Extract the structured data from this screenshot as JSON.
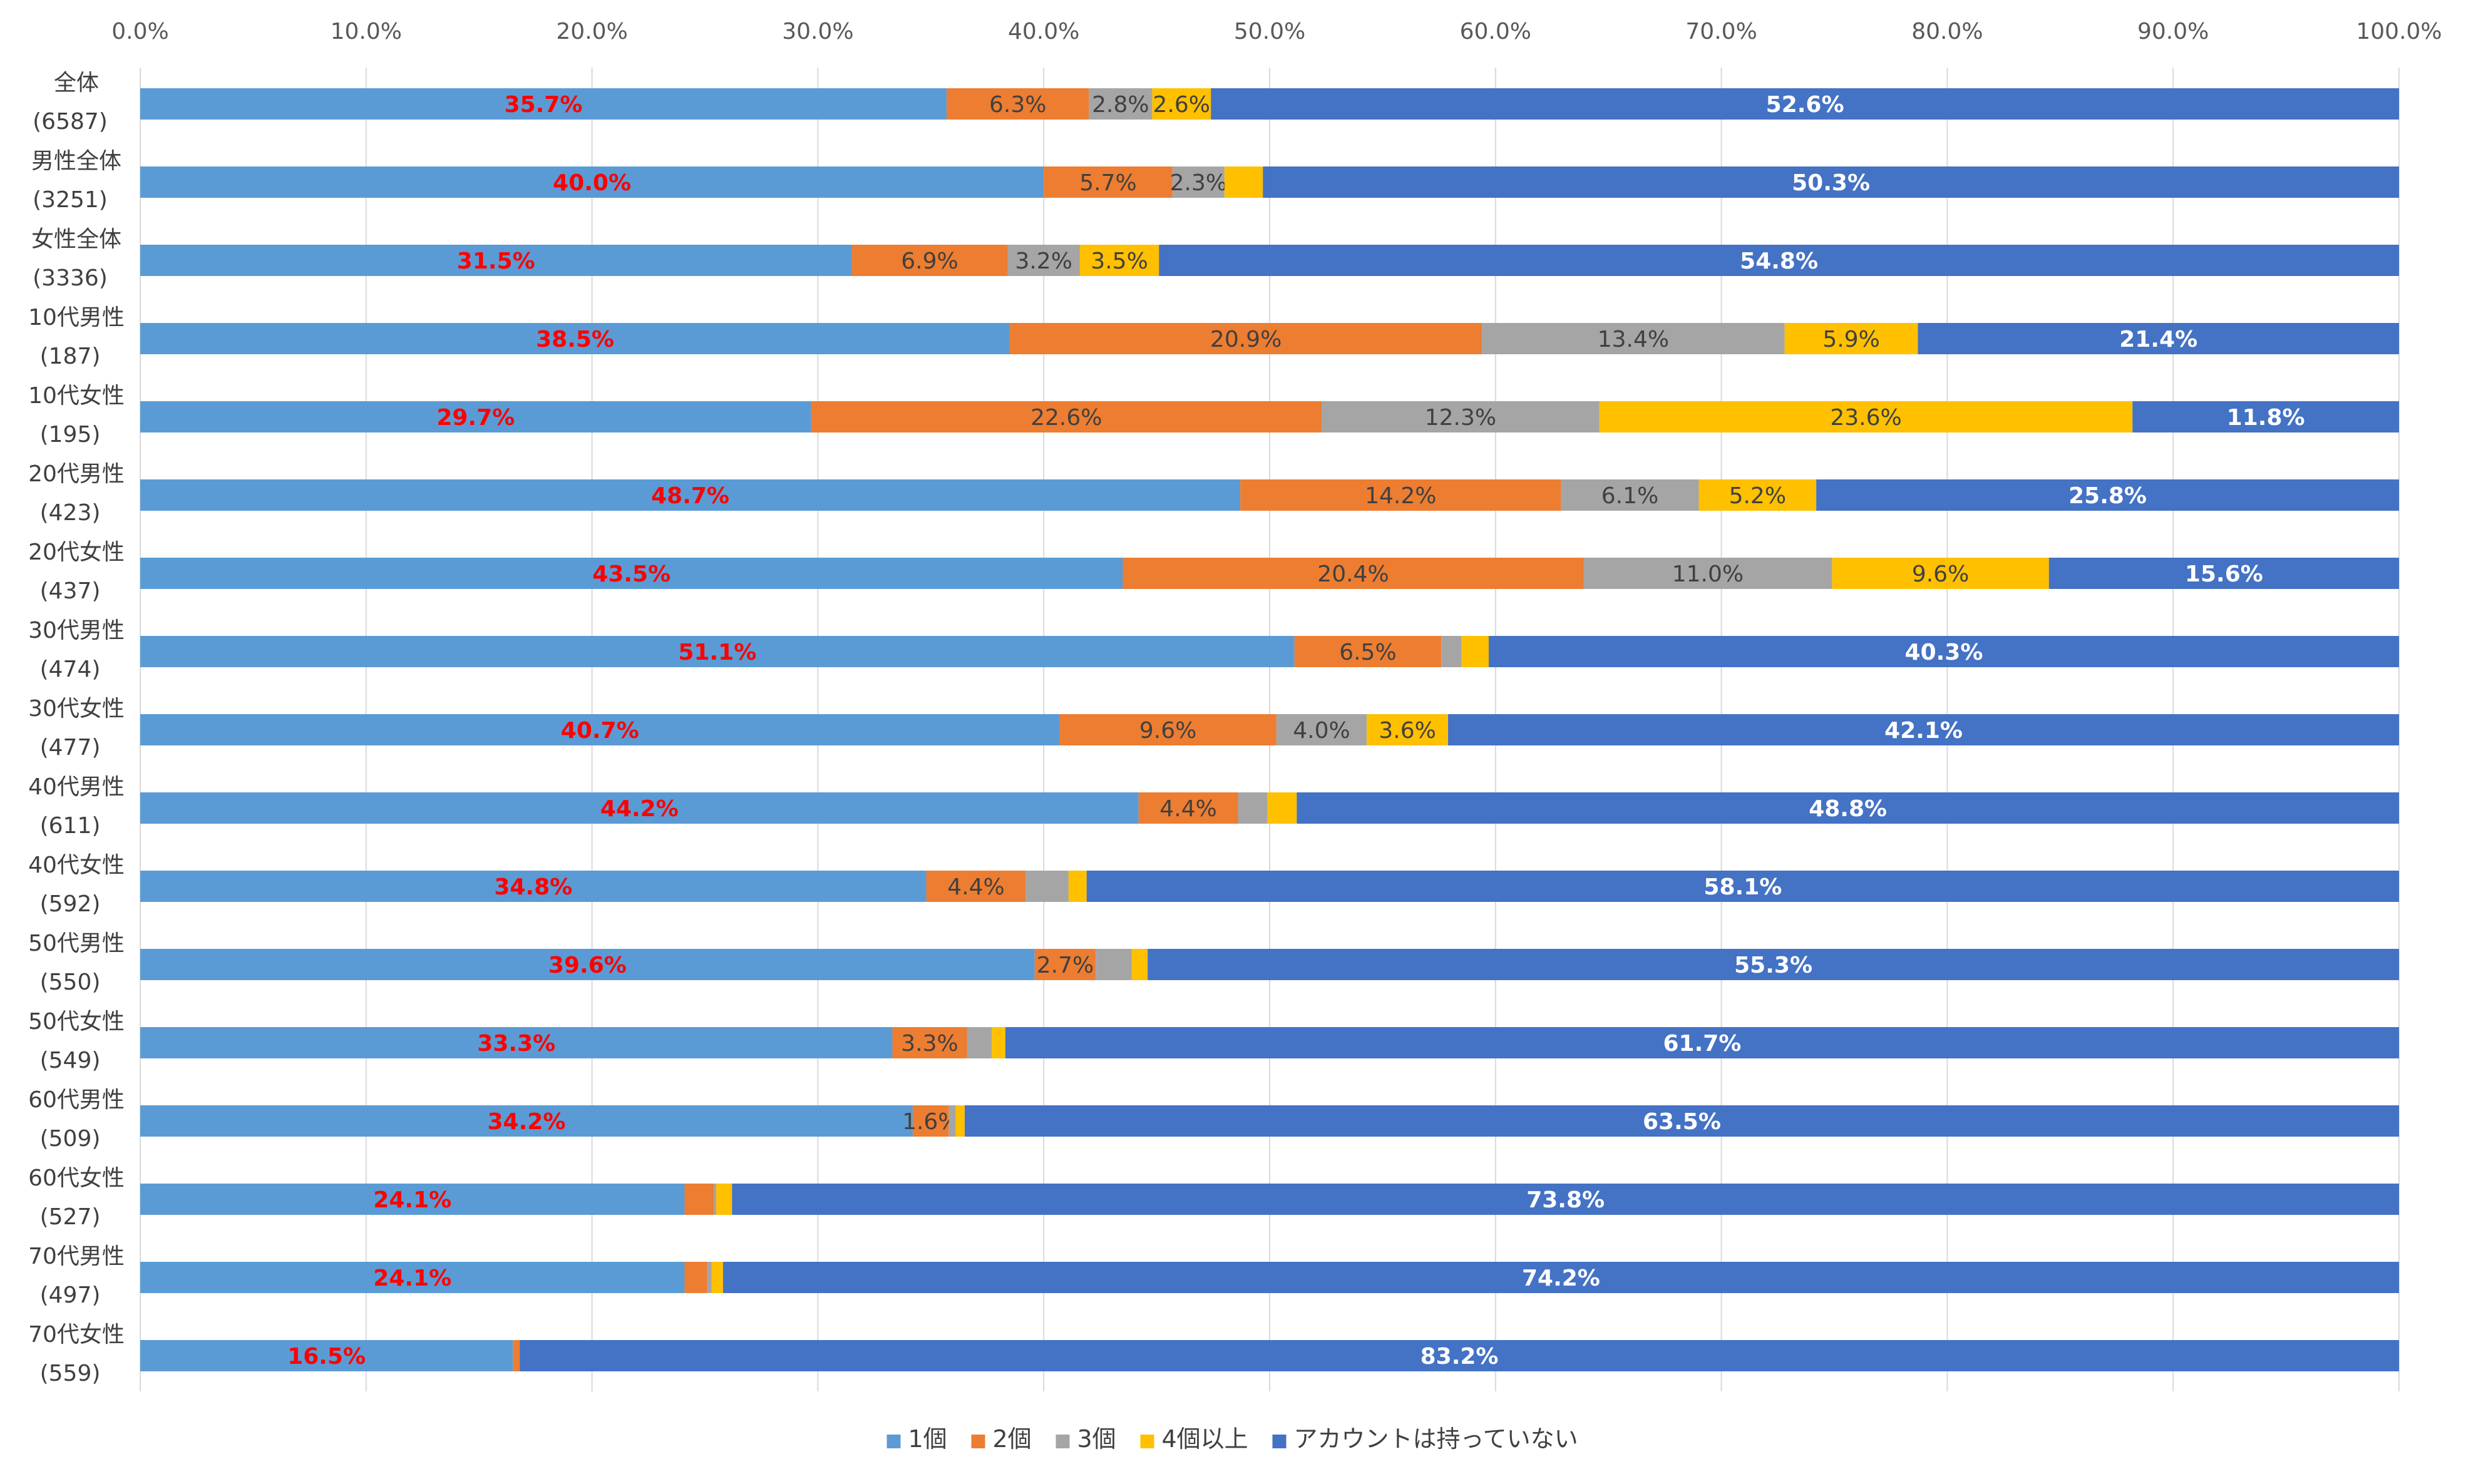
{
  "chart_data": {
    "type": "bar",
    "orientation": "horizontal",
    "stacked": "percent",
    "title": "",
    "xlabel": "",
    "ylabel": "",
    "xlim": [
      0,
      100
    ],
    "x_ticks": [
      "0.0%",
      "10.0%",
      "20.0%",
      "30.0%",
      "40.0%",
      "50.0%",
      "60.0%",
      "70.0%",
      "80.0%",
      "90.0%",
      "100.0%"
    ],
    "grid": true,
    "legend_position": "bottom",
    "categories": [
      {
        "name": "全体",
        "n": "(6587)"
      },
      {
        "name": "男性全体",
        "n": "(3251)"
      },
      {
        "name": "女性全体",
        "n": "(3336)"
      },
      {
        "name": "10代男性",
        "n": "(187)"
      },
      {
        "name": "10代女性",
        "n": "(195)"
      },
      {
        "name": "20代男性",
        "n": "(423)"
      },
      {
        "name": "20代女性",
        "n": "(437)"
      },
      {
        "name": "30代男性",
        "n": "(474)"
      },
      {
        "name": "30代女性",
        "n": "(477)"
      },
      {
        "name": "40代男性",
        "n": "(611)"
      },
      {
        "name": "40代女性",
        "n": "(592)"
      },
      {
        "name": "50代男性",
        "n": "(550)"
      },
      {
        "name": "50代女性",
        "n": "(549)"
      },
      {
        "name": "60代男性",
        "n": "(509)"
      },
      {
        "name": "60代女性",
        "n": "(527)"
      },
      {
        "name": "70代男性",
        "n": "(497)"
      },
      {
        "name": "70代女性",
        "n": "(559)"
      }
    ],
    "series": [
      {
        "name": "1個",
        "color": "#5B9BD5",
        "label_color": "#FF0000",
        "label_bold": true,
        "values": [
          35.7,
          40.0,
          31.5,
          38.5,
          29.7,
          48.7,
          43.5,
          51.1,
          40.7,
          44.2,
          34.8,
          39.6,
          33.3,
          34.2,
          24.1,
          24.1,
          16.5
        ],
        "labels": [
          "35.7%",
          "40.0%",
          "31.5%",
          "38.5%",
          "29.7%",
          "48.7%",
          "43.5%",
          "51.1%",
          "40.7%",
          "44.2%",
          "34.8%",
          "39.6%",
          "33.3%",
          "34.2%",
          "24.1%",
          "24.1%",
          "16.5%"
        ]
      },
      {
        "name": "2個",
        "color": "#ED7D31",
        "label_color": "#404040",
        "label_bold": false,
        "values": [
          6.3,
          5.7,
          6.9,
          20.9,
          22.6,
          14.2,
          20.4,
          6.5,
          9.6,
          4.4,
          4.4,
          2.7,
          3.3,
          1.6,
          1.3,
          1.0,
          0.3
        ],
        "labels": [
          "6.3%",
          "5.7%",
          "6.9%",
          "20.9%",
          "22.6%",
          "14.2%",
          "20.4%",
          "6.5%",
          "9.6%",
          "4.4%",
          "4.4%",
          "2.7%",
          "3.3%",
          "1.6%",
          "",
          "",
          ""
        ]
      },
      {
        "name": "3個",
        "color": "#A5A5A5",
        "label_color": "#404040",
        "label_bold": false,
        "values": [
          2.8,
          2.3,
          3.2,
          13.4,
          12.3,
          6.1,
          11.0,
          0.9,
          4.0,
          1.3,
          1.9,
          1.6,
          1.1,
          0.3,
          0.1,
          0.2,
          0.0
        ],
        "labels": [
          "2.8%",
          "2.3%",
          "3.2%",
          "13.4%",
          "12.3%",
          "6.1%",
          "11.0%",
          "",
          "4.0%",
          "",
          "",
          "",
          "",
          "",
          "",
          "",
          ""
        ]
      },
      {
        "name": "4個以上",
        "color": "#FFC000",
        "label_color": "#404040",
        "label_bold": false,
        "values": [
          2.6,
          1.7,
          3.5,
          5.9,
          23.6,
          5.2,
          9.6,
          1.2,
          3.6,
          1.3,
          0.8,
          0.7,
          0.6,
          0.4,
          0.7,
          0.5,
          0.0
        ],
        "labels": [
          "2.6%",
          "",
          "3.5%",
          "5.9%",
          "23.6%",
          "5.2%",
          "9.6%",
          "",
          "3.6%",
          "",
          "",
          "",
          "",
          "",
          "",
          "",
          ""
        ]
      },
      {
        "name": "アカウントは持っていない",
        "color": "#4472C4",
        "label_color": "#FFFFFF",
        "label_bold": true,
        "values": [
          52.6,
          50.3,
          54.8,
          21.4,
          11.8,
          25.8,
          15.6,
          40.3,
          42.1,
          48.8,
          58.1,
          55.3,
          61.7,
          63.5,
          73.8,
          74.2,
          83.2
        ],
        "labels": [
          "52.6%",
          "50.3%",
          "54.8%",
          "21.4%",
          "11.8%",
          "25.8%",
          "15.6%",
          "40.3%",
          "42.1%",
          "48.8%",
          "58.1%",
          "55.3%",
          "61.7%",
          "63.5%",
          "73.8%",
          "74.2%",
          "83.2%"
        ]
      }
    ]
  }
}
